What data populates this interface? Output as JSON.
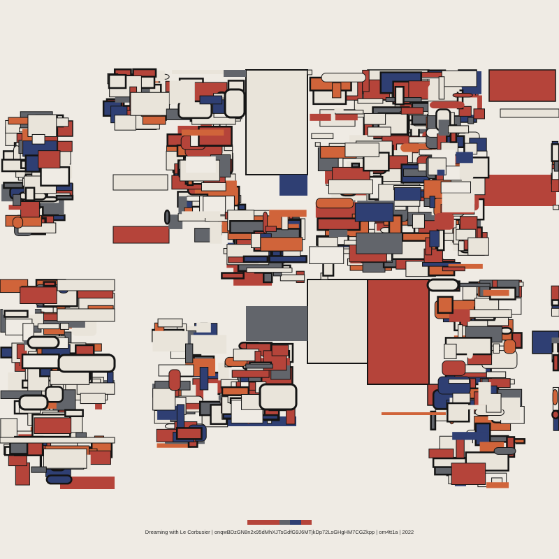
{
  "caption": "Dreaming with Le Corbusier | onqwBDzGN8n2x95dMhXJTsGdfG9J6MTjkDp72LsGHgHM7CGZkpp | om4tt1a | 2022",
  "palette": {
    "background": "#efebe4",
    "cream": "#e9e4da",
    "red": "#b5443a",
    "orange": "#d0643a",
    "navy": "#2f3f73",
    "gray": "#62656b",
    "ink": "#141414"
  },
  "palette_strip": [
    "red",
    "red",
    "red",
    "gray",
    "navy",
    "red"
  ]
}
